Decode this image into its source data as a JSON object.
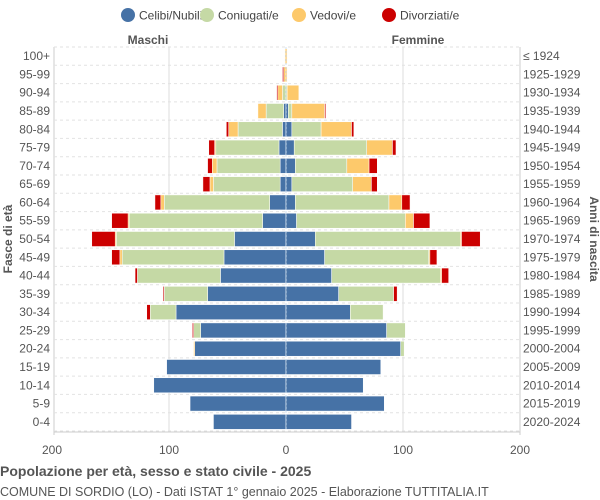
{
  "chart_data": {
    "type": "bar",
    "orientation": "horizontal-pyramid",
    "title": "Popolazione per età, sesso e stato civile - 2025",
    "subtitle": "COMUNE DI SORDIO (LO) - Dati ISTAT 1° gennaio 2025 - Elaborazione TUTTITALIA.IT",
    "left_label": "Maschi",
    "right_label": "Femmine",
    "ylabel_left": "Fasce di età",
    "ylabel_right": "Anni di nascita",
    "xlim": [
      -200,
      200
    ],
    "xticks": [
      "200",
      "100",
      "0",
      "100",
      "200"
    ],
    "grid": true,
    "legend_position": "top",
    "series_names": [
      "Celibi/Nubili",
      "Coniugati/e",
      "Vedovi/e",
      "Divorziati/e"
    ],
    "colors": [
      "#4672a6",
      "#c5d9a5",
      "#fdc96b",
      "#cc0000"
    ],
    "age_groups": [
      "100+",
      "95-99",
      "90-94",
      "85-89",
      "80-84",
      "75-79",
      "70-74",
      "65-69",
      "60-64",
      "55-59",
      "50-54",
      "45-49",
      "40-44",
      "35-39",
      "30-34",
      "25-29",
      "20-24",
      "15-19",
      "10-14",
      "5-9",
      "0-4"
    ],
    "birth_years": [
      "≤ 1924",
      "1925-1929",
      "1930-1934",
      "1935-1939",
      "1940-1944",
      "1945-1949",
      "1950-1954",
      "1955-1959",
      "1960-1964",
      "1965-1969",
      "1970-1974",
      "1975-1979",
      "1980-1984",
      "1985-1989",
      "1990-1994",
      "1995-1999",
      "2000-2004",
      "2005-2009",
      "2010-2014",
      "2015-2019",
      "2020-2024"
    ],
    "males": {
      "celibi": [
        0,
        0,
        0,
        2,
        3,
        6,
        5,
        5,
        14,
        20,
        44,
        53,
        56,
        67,
        94,
        73,
        78,
        102,
        113,
        82,
        62
      ],
      "coniugati": [
        0,
        0,
        3,
        15,
        38,
        54,
        54,
        57,
        90,
        114,
        101,
        87,
        71,
        37,
        22,
        6,
        0,
        0,
        0,
        0,
        0
      ],
      "vedovi": [
        1,
        2,
        4,
        7,
        8,
        1,
        4,
        3,
        3,
        1,
        1,
        2,
        0,
        0,
        0,
        0,
        1,
        0,
        0,
        0,
        0
      ],
      "divorziati": [
        0,
        1,
        1,
        0,
        2,
        5,
        4,
        6,
        5,
        14,
        20,
        7,
        2,
        1,
        3,
        1,
        0,
        0,
        0,
        0,
        0
      ]
    },
    "females": {
      "nubili": [
        0,
        0,
        0,
        2,
        5,
        7,
        8,
        5,
        8,
        9,
        25,
        33,
        39,
        45,
        55,
        86,
        98,
        81,
        66,
        84,
        56
      ],
      "coniugate": [
        0,
        0,
        1,
        3,
        25,
        62,
        44,
        52,
        80,
        93,
        124,
        89,
        93,
        47,
        28,
        16,
        3,
        0,
        0,
        0,
        0
      ],
      "vedove": [
        1,
        1,
        10,
        28,
        26,
        22,
        19,
        16,
        11,
        7,
        1,
        1,
        1,
        0,
        0,
        0,
        0,
        0,
        0,
        0,
        0
      ],
      "divorziate": [
        0,
        0,
        0,
        1,
        2,
        3,
        7,
        5,
        7,
        14,
        16,
        6,
        6,
        3,
        0,
        0,
        0,
        0,
        0,
        0,
        0
      ]
    }
  }
}
